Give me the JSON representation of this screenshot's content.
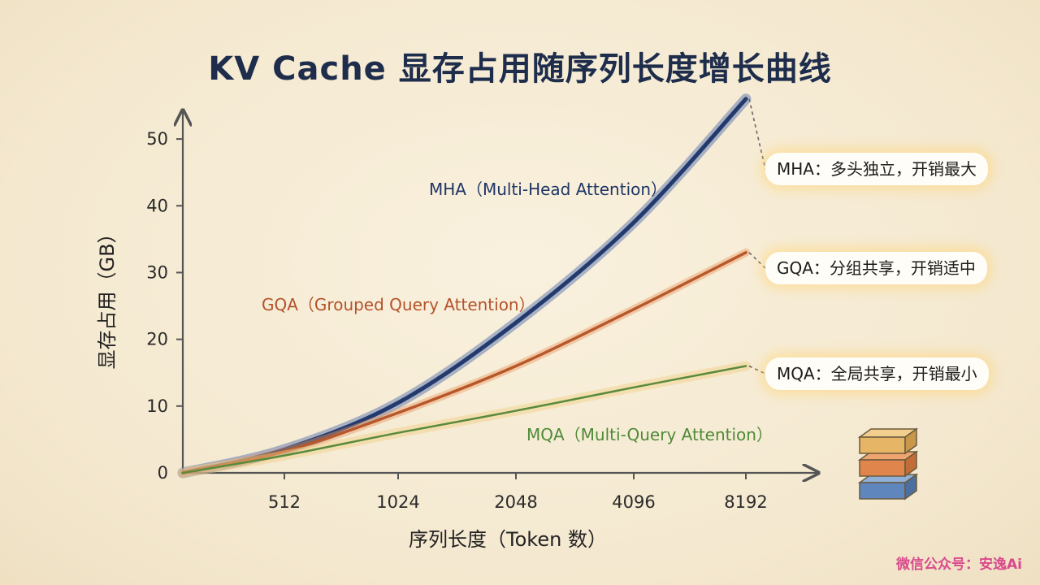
{
  "chart_data": {
    "type": "line",
    "title": "KV Cache 显存占用随序列长度增长曲线",
    "xlabel": "序列长度（Token 数）",
    "ylabel": "显存占用（GB）",
    "x": [
      0,
      512,
      1024,
      2048,
      4096,
      8192
    ],
    "x_tick_labels": [
      "512",
      "1024",
      "2048",
      "4096",
      "8192"
    ],
    "y_ticks": [
      0,
      10,
      20,
      30,
      40,
      50
    ],
    "ylim": [
      0,
      55
    ],
    "grid": false,
    "series": [
      {
        "name": "MHA（Multi-Head Attention）",
        "color": "#233a6e",
        "values": [
          0,
          3.5,
          10.5,
          22.5,
          37.5,
          56
        ],
        "callout": "MHA：多头独立，开销最大"
      },
      {
        "name": "GQA（Grouped Query Attention）",
        "color": "#b8582a",
        "values": [
          0,
          3.2,
          9,
          16,
          24.5,
          33
        ],
        "callout": "GQA：分组共享，开销适中"
      },
      {
        "name": "MQA（Multi-Query Attention）",
        "color": "#5a8a3c",
        "values": [
          0,
          2.6,
          6,
          9.3,
          12.8,
          16
        ],
        "callout": "MQA：全局共享，开销最小"
      }
    ]
  },
  "watermark": "微信公众号：安逸Ai",
  "icons": {
    "stack": "memory-stack-icon"
  }
}
